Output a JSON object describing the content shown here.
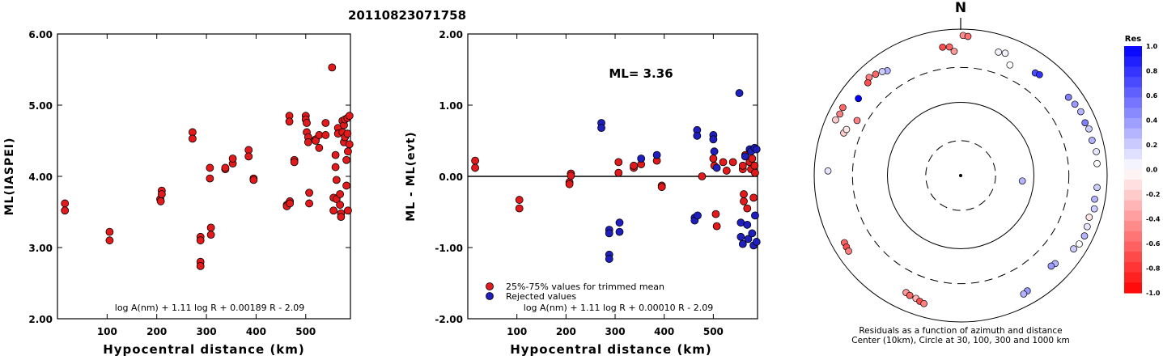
{
  "figure": {
    "title": "20110823071758"
  },
  "chart_data": [
    {
      "id": "ml-vs-distance",
      "type": "scatter",
      "xlabel": "Hypocentral distance (km)",
      "ylabel": "ML(IASPEI)",
      "xlim": [
        0,
        590
      ],
      "ylim": [
        2.0,
        6.0
      ],
      "xticks": [
        100,
        200,
        300,
        400,
        500
      ],
      "yticks": [
        2.0,
        3.0,
        4.0,
        5.0,
        6.0
      ],
      "ytick_labels": [
        "2.00",
        "3.00",
        "4.00",
        "5.00",
        "6.00"
      ],
      "formula": "log A(nm) + 1.11 log R + 0.00189 R - 2.09",
      "marker_color": "#e31a1c",
      "points": [
        [
          15,
          3.62
        ],
        [
          15,
          3.52
        ],
        [
          105,
          3.22
        ],
        [
          105,
          3.1
        ],
        [
          207,
          3.68
        ],
        [
          208,
          3.65
        ],
        [
          210,
          3.8
        ],
        [
          210,
          3.75
        ],
        [
          272,
          4.62
        ],
        [
          272,
          4.53
        ],
        [
          288,
          3.15
        ],
        [
          288,
          3.1
        ],
        [
          288,
          2.8
        ],
        [
          288,
          2.74
        ],
        [
          307,
          4.12
        ],
        [
          307,
          3.97
        ],
        [
          309,
          3.28
        ],
        [
          309,
          3.18
        ],
        [
          338,
          4.1
        ],
        [
          338,
          4.12
        ],
        [
          353,
          4.18
        ],
        [
          353,
          4.25
        ],
        [
          385,
          4.37
        ],
        [
          385,
          4.28
        ],
        [
          395,
          3.97
        ],
        [
          395,
          3.95
        ],
        [
          462,
          3.6
        ],
        [
          462,
          3.58
        ],
        [
          467,
          4.85
        ],
        [
          467,
          4.77
        ],
        [
          468,
          3.65
        ],
        [
          468,
          3.62
        ],
        [
          477,
          4.23
        ],
        [
          477,
          4.2
        ],
        [
          500,
          4.85
        ],
        [
          500,
          4.8
        ],
        [
          502,
          4.75
        ],
        [
          502,
          4.62
        ],
        [
          505,
          4.55
        ],
        [
          505,
          4.48
        ],
        [
          507,
          3.77
        ],
        [
          507,
          3.62
        ],
        [
          520,
          4.52
        ],
        [
          520,
          4.5
        ],
        [
          527,
          4.4
        ],
        [
          527,
          4.58
        ],
        [
          540,
          4.75
        ],
        [
          540,
          4.58
        ],
        [
          553,
          5.53
        ],
        [
          556,
          3.7
        ],
        [
          556,
          3.52
        ],
        [
          560,
          4.3
        ],
        [
          560,
          4.13
        ],
        [
          562,
          3.95
        ],
        [
          562,
          3.68
        ],
        [
          565,
          4.68
        ],
        [
          565,
          4.6
        ],
        [
          569,
          3.75
        ],
        [
          569,
          3.6
        ],
        [
          571,
          3.48
        ],
        [
          571,
          3.43
        ],
        [
          574,
          4.78
        ],
        [
          574,
          4.62
        ],
        [
          577,
          4.72
        ],
        [
          577,
          4.48
        ],
        [
          579,
          4.8
        ],
        [
          579,
          4.55
        ],
        [
          582,
          4.23
        ],
        [
          582,
          3.87
        ],
        [
          584,
          4.82
        ],
        [
          584,
          4.6
        ],
        [
          585,
          4.35
        ],
        [
          585,
          3.52
        ],
        [
          588,
          4.85
        ],
        [
          588,
          4.45
        ]
      ]
    },
    {
      "id": "residual-vs-distance",
      "type": "scatter",
      "annotation": "ML= 3.36",
      "xlabel": "Hypocentral distance (km)",
      "ylabel": "ML - ML(evt)",
      "xlim": [
        0,
        590
      ],
      "ylim": [
        -2.0,
        2.0
      ],
      "xticks": [
        100,
        200,
        300,
        400,
        500
      ],
      "yticks": [
        -2.0,
        -1.0,
        0.0,
        1.0,
        2.0
      ],
      "ytick_labels": [
        "-2.00",
        "-1.00",
        "0.00",
        "1.00",
        "2.00"
      ],
      "reference_line": 0.0,
      "formula": "log A(nm) + 1.11 log R + 0.00010 R - 2.09",
      "series": [
        {
          "name": "25%-75% values for trimmed mean",
          "color": "#e31a1c",
          "points": [
            [
              15,
              0.22
            ],
            [
              15,
              0.12
            ],
            [
              105,
              -0.33
            ],
            [
              105,
              -0.45
            ],
            [
              207,
              -0.08
            ],
            [
              207,
              -0.11
            ],
            [
              210,
              0.04
            ],
            [
              210,
              0.01
            ],
            [
              307,
              0.2
            ],
            [
              307,
              0.05
            ],
            [
              338,
              0.12
            ],
            [
              338,
              0.15
            ],
            [
              353,
              0.17
            ],
            [
              385,
              0.22
            ],
            [
              395,
              -0.13
            ],
            [
              395,
              -0.15
            ],
            [
              477,
              0.0
            ],
            [
              500,
              0.25
            ],
            [
              502,
              0.15
            ],
            [
              505,
              -0.53
            ],
            [
              507,
              -0.7
            ],
            [
              520,
              0.2
            ],
            [
              527,
              0.08
            ],
            [
              540,
              0.2
            ],
            [
              560,
              0.1
            ],
            [
              560,
              0.15
            ],
            [
              562,
              -0.25
            ],
            [
              562,
              -0.35
            ],
            [
              565,
              0.3
            ],
            [
              569,
              -0.45
            ],
            [
              574,
              0.2
            ],
            [
              577,
              0.1
            ],
            [
              579,
              0.25
            ],
            [
              582,
              -0.3
            ],
            [
              584,
              0.15
            ],
            [
              585,
              0.05
            ]
          ]
        },
        {
          "name": "Rejected values",
          "color": "#1f1fbf",
          "points": [
            [
              272,
              0.75
            ],
            [
              272,
              0.68
            ],
            [
              288,
              -0.75
            ],
            [
              288,
              -0.8
            ],
            [
              288,
              -1.1
            ],
            [
              288,
              -1.16
            ],
            [
              309,
              -0.65
            ],
            [
              309,
              -0.78
            ],
            [
              353,
              0.25
            ],
            [
              385,
              0.3
            ],
            [
              462,
              -0.58
            ],
            [
              462,
              -0.62
            ],
            [
              467,
              0.65
            ],
            [
              467,
              0.57
            ],
            [
              468,
              -0.55
            ],
            [
              500,
              0.58
            ],
            [
              500,
              0.52
            ],
            [
              502,
              0.35
            ],
            [
              507,
              0.12
            ],
            [
              553,
              1.17
            ],
            [
              556,
              -0.65
            ],
            [
              556,
              -0.85
            ],
            [
              560,
              -0.95
            ],
            [
              565,
              0.28
            ],
            [
              569,
              -0.68
            ],
            [
              571,
              -0.88
            ],
            [
              574,
              0.38
            ],
            [
              577,
              0.35
            ],
            [
              579,
              -0.8
            ],
            [
              582,
              -0.97
            ],
            [
              584,
              0.4
            ],
            [
              585,
              -0.55
            ],
            [
              588,
              0.38
            ],
            [
              588,
              -0.92
            ]
          ]
        }
      ]
    },
    {
      "id": "azimuth-distance-residuals",
      "type": "scatter",
      "north_label": "N",
      "caption_line1": "Residuals as a function of azimuth and distance",
      "caption_line2": "Center (10km), Circle at 30, 100, 300 and 1000 km",
      "circles_km": [
        30,
        100,
        300,
        1000
      ],
      "colorbar": {
        "title": "Res",
        "range": [
          -1.0,
          1.0
        ],
        "tick_values": [
          1.0,
          0.8,
          0.6,
          0.4,
          0.2,
          0.0,
          -0.2,
          -0.4,
          -0.6,
          -0.8,
          -1.0
        ],
        "tick_labels": [
          "1.0",
          "0.8",
          "0.6",
          "0.4",
          "0.2",
          "0.0",
          "-0.2",
          "-0.4",
          "-0.6",
          "-0.8",
          "-1.0"
        ],
        "positive_color": "#0000ff",
        "negative_color": "#ff0000"
      },
      "stations": [
        {
          "az": -53,
          "km": 560,
          "res": 1.1
        },
        {
          "az": -8,
          "km": 590,
          "res": -0.7
        },
        {
          "az": -5,
          "km": 580,
          "res": -0.6
        },
        {
          "az": -3,
          "km": 500,
          "res": -0.4
        },
        {
          "az": 1,
          "km": 820,
          "res": -0.45
        },
        {
          "az": 3,
          "km": 800,
          "res": -0.55
        },
        {
          "az": 17,
          "km": 580,
          "res": 0.05
        },
        {
          "az": 20,
          "km": 600,
          "res": 0.05
        },
        {
          "az": 24,
          "km": 450,
          "res": 0.0
        },
        {
          "az": 36,
          "km": 540,
          "res": 0.7
        },
        {
          "az": 38,
          "km": 560,
          "res": 0.8
        },
        {
          "az": -35,
          "km": 560,
          "res": 0.3
        },
        {
          "az": -37,
          "km": 600,
          "res": 0.2
        },
        {
          "az": -40,
          "km": 640,
          "res": -0.6
        },
        {
          "az": -43,
          "km": 680,
          "res": -0.5
        },
        {
          "az": -45,
          "km": 620,
          "res": -0.7
        },
        {
          "az": -60,
          "km": 720,
          "res": -0.6
        },
        {
          "az": -63,
          "km": 710,
          "res": -0.5
        },
        {
          "az": -66,
          "km": 740,
          "res": -0.2
        },
        {
          "az": -62,
          "km": 400,
          "res": -0.5
        },
        {
          "az": -70,
          "km": 500,
          "res": -0.2
        },
        {
          "az": -68,
          "km": 480,
          "res": -0.1
        },
        {
          "az": -88,
          "km": 650,
          "res": 0.1
        },
        {
          "az": 54,
          "km": 660,
          "res": 0.5
        },
        {
          "az": 58,
          "km": 690,
          "res": 0.4
        },
        {
          "az": 62,
          "km": 720,
          "res": 0.3
        },
        {
          "az": 67,
          "km": 700,
          "res": 0.5
        },
        {
          "az": 70,
          "km": 730,
          "res": 0.2
        },
        {
          "az": 75,
          "km": 720,
          "res": 0.3
        },
        {
          "az": 80,
          "km": 760,
          "res": 0.1
        },
        {
          "az": 85,
          "km": 740,
          "res": 0.0
        },
        {
          "az": 95,
          "km": 740,
          "res": 0.2
        },
        {
          "az": 100,
          "km": 720,
          "res": 0.3
        },
        {
          "az": 104,
          "km": 760,
          "res": 0.2
        },
        {
          "az": 108,
          "km": 700,
          "res": -0.1
        },
        {
          "az": 112,
          "km": 730,
          "res": 0.1
        },
        {
          "az": 116,
          "km": 760,
          "res": 0.3
        },
        {
          "az": 120,
          "km": 740,
          "res": 0.0
        },
        {
          "az": 123,
          "km": 690,
          "res": 0.2
        },
        {
          "az": 133,
          "km": 580,
          "res": 0.3
        },
        {
          "az": 135,
          "km": 560,
          "res": 0.4
        },
        {
          "az": 95,
          "km": 70,
          "res": 0.3
        },
        {
          "az": 150,
          "km": 660,
          "res": 0.4
        },
        {
          "az": 152,
          "km": 680,
          "res": 0.3
        },
        {
          "az": -120,
          "km": 680,
          "res": -0.6
        },
        {
          "az": -122,
          "km": 690,
          "res": -0.7
        },
        {
          "az": -124,
          "km": 700,
          "res": -0.5
        },
        {
          "az": -155,
          "km": 580,
          "res": -0.4
        },
        {
          "az": -157,
          "km": 600,
          "res": -0.6
        },
        {
          "az": -160,
          "km": 610,
          "res": -0.3
        },
        {
          "az": -162,
          "km": 640,
          "res": -0.7
        },
        {
          "az": -164,
          "km": 660,
          "res": -0.5
        }
      ]
    }
  ]
}
